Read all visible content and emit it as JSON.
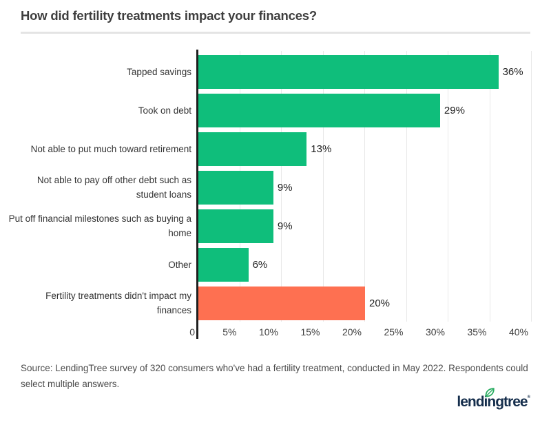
{
  "source": "Source: LendingTree survey of 320 consumers who've had a fertility treatment, conducted in May 2022. Respondents could select multiple answers.",
  "logo": {
    "text": "lendingtree",
    "registered": "®"
  },
  "colors": {
    "bar_green": "#0fbe7b",
    "bar_orange": "#fe7051",
    "axis": "#1f1f1f",
    "gridline": "#e8e8e8",
    "title_text": "#3e3e3e",
    "label_text": "#333333",
    "source_text": "#4a4a4a",
    "logo_navy": "#152e4c",
    "leaf_green": "#2aad62",
    "divider": "#e4e4e4"
  },
  "chart_data": {
    "type": "bar",
    "orientation": "horizontal",
    "title": "How did fertility treatments impact your finances?",
    "xlabel": "",
    "ylabel": "",
    "grid": true,
    "xlim": [
      0,
      40
    ],
    "categories": [
      "Tapped savings",
      "Took on debt",
      "Not able to put much toward retirement",
      "Not able to pay off other debt such as\nstudent loans",
      "Put off financial milestones such as buying a\nhome",
      "Other",
      "Fertility treatments didn't impact my\nfinances"
    ],
    "values": [
      36,
      29,
      13,
      9,
      9,
      6,
      20
    ],
    "value_labels": [
      "36%",
      "29%",
      "13%",
      "9%",
      "9%",
      "6%",
      "20%"
    ],
    "bar_colors": [
      "#0fbe7b",
      "#0fbe7b",
      "#0fbe7b",
      "#0fbe7b",
      "#0fbe7b",
      "#0fbe7b",
      "#fe7051"
    ],
    "ticks": [
      {
        "value": 0,
        "label": "0"
      },
      {
        "value": 5,
        "label": "5%"
      },
      {
        "value": 10,
        "label": "10%"
      },
      {
        "value": 15,
        "label": "15%"
      },
      {
        "value": 20,
        "label": "20%"
      },
      {
        "value": 25,
        "label": "25%"
      },
      {
        "value": 30,
        "label": "30%"
      },
      {
        "value": 35,
        "label": "35%"
      },
      {
        "value": 40,
        "label": "40%"
      }
    ]
  }
}
